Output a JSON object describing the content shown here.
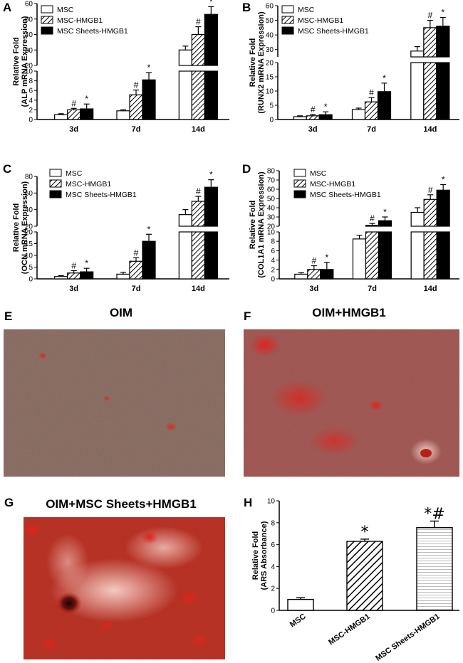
{
  "chart_data": [
    {
      "id": "A",
      "type": "bar",
      "panel_label": "A",
      "ylabel": [
        "Relative Fold",
        "(ALP mRNA Expression)"
      ],
      "categories": [
        "3d",
        "7d",
        "14d"
      ],
      "series": [
        {
          "name": "MSC",
          "values": [
            1.0,
            1.8,
            30
          ],
          "errors": [
            0.2,
            0.2,
            2.5
          ]
        },
        {
          "name": "MSC-HMGB1",
          "values": [
            2.0,
            5.1,
            40
          ],
          "errors": [
            0.3,
            1.0,
            5
          ]
        },
        {
          "name": "MSC Sheets-HMGB1",
          "values": [
            2.2,
            8.2,
            53
          ],
          "errors": [
            1.0,
            1.5,
            5
          ]
        }
      ],
      "markers": [
        [
          "",
          "#",
          "*"
        ],
        [
          "",
          "#",
          "*"
        ],
        [
          "",
          "#",
          "*"
        ]
      ],
      "axis": {
        "break_low": [
          0,
          10
        ],
        "break_high": [
          20,
          60
        ],
        "ticks_low": [
          "0",
          "2",
          "4",
          "6",
          "8",
          "10"
        ],
        "ticks_high": [
          "20",
          "30",
          "40",
          "50",
          "60"
        ]
      },
      "legend_placement": "top-left"
    },
    {
      "id": "B",
      "type": "bar",
      "panel_label": "B",
      "ylabel": [
        "Relative Fold",
        "(RUNX2 mRNA Expression)"
      ],
      "categories": [
        "3d",
        "7d",
        "14d"
      ],
      "series": [
        {
          "name": "MSC",
          "values": [
            1.0,
            3.5,
            29
          ],
          "errors": [
            0.3,
            0.5,
            3
          ]
        },
        {
          "name": "MSC-HMGB1",
          "values": [
            1.3,
            6.2,
            45
          ],
          "errors": [
            0.5,
            1.5,
            5
          ]
        },
        {
          "name": "MSC Sheets-HMGB1",
          "values": [
            1.7,
            9.8,
            46
          ],
          "errors": [
            1.0,
            3.0,
            6
          ]
        }
      ],
      "markers": [
        [
          "",
          "#",
          "*"
        ],
        [
          "",
          "#",
          "*"
        ],
        [
          "",
          "#",
          "*"
        ]
      ],
      "axis": {
        "break_low": [
          0,
          20
        ],
        "break_high": [
          25,
          60
        ],
        "ticks_low": [
          "0",
          "5",
          "10",
          "15",
          "20"
        ],
        "ticks_high": [
          "30",
          "40",
          "50",
          "60"
        ]
      },
      "legend_placement": "top-left"
    },
    {
      "id": "C",
      "type": "bar",
      "panel_label": "C",
      "ylabel": [
        "Relative Fold",
        "(OCN mRNA Expression)"
      ],
      "categories": [
        "3d",
        "7d",
        "14d"
      ],
      "series": [
        {
          "name": "MSC",
          "values": [
            1.0,
            2.0,
            34
          ],
          "errors": [
            0.4,
            0.8,
            6
          ]
        },
        {
          "name": "MSC-HMGB1",
          "values": [
            2.5,
            7.5,
            50
          ],
          "errors": [
            1.0,
            1.5,
            6
          ]
        },
        {
          "name": "MSC Sheets-HMGB1",
          "values": [
            3.0,
            16.0,
            67
          ],
          "errors": [
            1.5,
            3.0,
            9
          ]
        }
      ],
      "markers": [
        [
          "",
          "#",
          "*"
        ],
        [
          "",
          "#",
          "*"
        ],
        [
          "",
          "#",
          "*"
        ]
      ],
      "axis": {
        "break_low": [
          0,
          20
        ],
        "break_high": [
          20,
          80
        ],
        "ticks_low": [
          "0",
          "5",
          "10",
          "15",
          "20"
        ],
        "ticks_high": [
          "20",
          "40",
          "60",
          "80"
        ]
      },
      "legend_placement": "top-left"
    },
    {
      "id": "D",
      "type": "bar",
      "panel_label": "D",
      "ylabel": [
        "Relative Fold",
        "(COL1A1 mRNA Expression)"
      ],
      "categories": [
        "3d",
        "7d",
        "14d"
      ],
      "series": [
        {
          "name": "MSC",
          "values": [
            1.0,
            8.5,
            35
          ],
          "errors": [
            0.3,
            0.8,
            5
          ]
        },
        {
          "name": "MSC-HMGB1",
          "values": [
            2.0,
            21,
            49
          ],
          "errors": [
            0.8,
            2,
            5
          ]
        },
        {
          "name": "MSC Sheets-HMGB1",
          "values": [
            2.0,
            26,
            59
          ],
          "errors": [
            1.5,
            4,
            6
          ]
        }
      ],
      "markers": [
        [
          "",
          "#",
          "*"
        ],
        [
          "",
          "#",
          "*"
        ],
        [
          "",
          "#",
          "*"
        ]
      ],
      "axis": {
        "break_low": [
          0,
          10
        ],
        "break_high": [
          20,
          80
        ],
        "ticks_low": [
          "0",
          "2",
          "4",
          "6",
          "8",
          "10"
        ],
        "ticks_high": [
          "20",
          "30",
          "40",
          "50",
          "60",
          "70",
          "80"
        ]
      },
      "legend_placement": "top-left"
    },
    {
      "id": "H",
      "type": "bar",
      "panel_label": "H",
      "ylabel": [
        "Relative Fold",
        "(ARS Absorbance)"
      ],
      "categories": [
        "MSC",
        "MSC-HMGB1",
        "MSC Sheets-HMGB1"
      ],
      "values": [
        1.0,
        6.3,
        7.55
      ],
      "errors": [
        0.15,
        0.2,
        0.6
      ],
      "markers": [
        "",
        "*",
        "*#"
      ],
      "ylim": [
        0,
        10
      ],
      "yticks": [
        "0",
        "2",
        "4",
        "6",
        "8",
        "10"
      ],
      "grid": false
    }
  ],
  "images": [
    {
      "id": "E",
      "panel_label": "E",
      "title": "OIM"
    },
    {
      "id": "F",
      "panel_label": "F",
      "title": "OIM+HMGB1"
    },
    {
      "id": "G",
      "panel_label": "G",
      "title": "OIM+MSC Sheets+HMGB1"
    }
  ],
  "colors": {
    "msc": "#ffffff",
    "hmgb1": "hatched-diagonal",
    "sheets": "#000000",
    "stain_base": "#8b7a78",
    "stain_red": "#d8352a"
  }
}
